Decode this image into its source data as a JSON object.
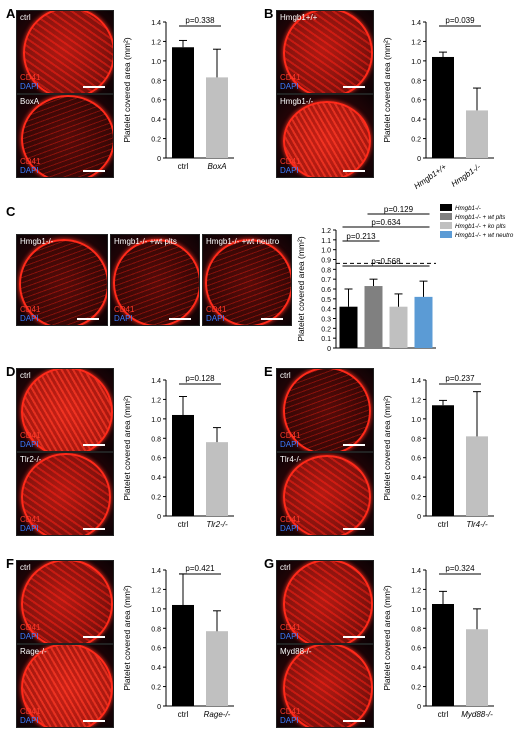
{
  "panels": {
    "A": {
      "letter": "A",
      "images": [
        {
          "label": "ctrl"
        },
        {
          "label": "BoxA"
        }
      ]
    },
    "B": {
      "letter": "B",
      "images": [
        {
          "label": "Hmgb1+/+"
        },
        {
          "label": "Hmgb1-/-"
        }
      ]
    },
    "C": {
      "letter": "C",
      "images": [
        {
          "label": "Hmgb1-/-"
        },
        {
          "label": "Hmgb1-/- +wt plts"
        },
        {
          "label": "Hmgb1-/- +wt neutro"
        }
      ]
    },
    "D": {
      "letter": "D",
      "images": [
        {
          "label": "ctrl"
        },
        {
          "label": "Tlr2-/-"
        }
      ]
    },
    "E": {
      "letter": "E",
      "images": [
        {
          "label": "ctrl"
        },
        {
          "label": "Tlr4-/-"
        }
      ]
    },
    "F": {
      "letter": "F",
      "images": [
        {
          "label": "ctrl"
        },
        {
          "label": "Rage-/-"
        }
      ]
    },
    "G": {
      "letter": "G",
      "images": [
        {
          "label": "ctrl"
        },
        {
          "label": "Myd88-/-"
        }
      ]
    }
  },
  "stain_labels": {
    "cd41": "CD41",
    "dapi": "DAPI"
  },
  "colors": {
    "black_bar": "#000000",
    "gray_bar": "#c0c0c0",
    "dark_gray_bar": "#808080",
    "blue_bar": "#5b9bd5",
    "cd41": "#ff3a2a",
    "dapi": "#3a7bff"
  },
  "chart_data": [
    {
      "panel": "A",
      "type": "bar",
      "categories": [
        "ctrl",
        "BoxA"
      ],
      "values": [
        1.14,
        0.83
      ],
      "errors": [
        0.07,
        0.29
      ],
      "colors": [
        "#000000",
        "#c0c0c0"
      ],
      "ylabel": "Platelet covered area (mm²)",
      "ylim": [
        0,
        1.4
      ],
      "yticks": [
        "0",
        "0.2",
        "0.4",
        "0.6",
        "0.8",
        "1.0",
        "1.2",
        "1.4"
      ],
      "annotations": [
        {
          "text": "p=0.338",
          "from": 0,
          "to": 1
        }
      ]
    },
    {
      "panel": "B",
      "type": "bar",
      "categories": [
        "Hmgb1+/+",
        "Hmgb1-/-"
      ],
      "values": [
        1.04,
        0.49
      ],
      "errors": [
        0.05,
        0.23
      ],
      "colors": [
        "#000000",
        "#c0c0c0"
      ],
      "ylabel": "Platelet covered area (mm²)",
      "ylim": [
        0,
        1.4
      ],
      "yticks": [
        "0",
        "0.2",
        "0.4",
        "0.6",
        "0.8",
        "1.0",
        "1.2",
        "1.4"
      ],
      "annotations": [
        {
          "text": "p=0.039",
          "from": 0,
          "to": 1
        }
      ]
    },
    {
      "panel": "C",
      "type": "bar",
      "categories": [
        "Hmgb1-/-",
        "Hmgb1-/- + wt plts",
        "Hmgb1-/- + ko plts",
        "Hmgb1-/- + wt neutro"
      ],
      "values": [
        0.42,
        0.63,
        0.42,
        0.52
      ],
      "errors": [
        0.18,
        0.07,
        0.13,
        0.16
      ],
      "colors": [
        "#000000",
        "#808080",
        "#c0c0c0",
        "#5b9bd5"
      ],
      "ylabel": "Platelet covered area (mm²)",
      "ylim": [
        0,
        1.2
      ],
      "yticks": [
        "0",
        "0.1",
        "0.2",
        "0.3",
        "0.4",
        "0.5",
        "0.6",
        "0.7",
        "0.8",
        "0.9",
        "1.0",
        "1.1",
        "1.2"
      ],
      "reference_line": 0.86,
      "legend": [
        "Hmgb1-/-",
        "Hmgb1-/- + wt plts",
        "Hmgb1-/- + ko plts",
        "Hmgb1-/- + wt neutro"
      ],
      "annotations": [
        {
          "text": "p=0.129",
          "from": 1,
          "to": 3
        },
        {
          "text": "p=0.634",
          "from": 0,
          "to": 3
        },
        {
          "text": "p=0.213",
          "from": 0,
          "to": 1
        },
        {
          "text": "p=0.568",
          "from": 0,
          "to": 3
        }
      ]
    },
    {
      "panel": "D",
      "type": "bar",
      "categories": [
        "ctrl",
        "Tlr2-/-"
      ],
      "values": [
        1.04,
        0.76
      ],
      "errors": [
        0.19,
        0.15
      ],
      "colors": [
        "#000000",
        "#c0c0c0"
      ],
      "ylabel": "Platelet covered area (mm²)",
      "ylim": [
        0,
        1.4
      ],
      "yticks": [
        "0",
        "0.2",
        "0.4",
        "0.6",
        "0.8",
        "1.0",
        "1.2",
        "1.4"
      ],
      "annotations": [
        {
          "text": "p=0.128",
          "from": 0,
          "to": 1
        }
      ]
    },
    {
      "panel": "E",
      "type": "bar",
      "categories": [
        "ctrl",
        "Tlr4-/-"
      ],
      "values": [
        1.14,
        0.82
      ],
      "errors": [
        0.05,
        0.46
      ],
      "colors": [
        "#000000",
        "#c0c0c0"
      ],
      "ylabel": "Platelet covered area (mm²)",
      "ylim": [
        0,
        1.4
      ],
      "yticks": [
        "0",
        "0.2",
        "0.4",
        "0.6",
        "0.8",
        "1.0",
        "1.2",
        "1.4"
      ],
      "annotations": [
        {
          "text": "p=0.237",
          "from": 0,
          "to": 1
        }
      ]
    },
    {
      "panel": "F",
      "type": "bar",
      "categories": [
        "ctrl",
        "Rage-/-"
      ],
      "values": [
        1.04,
        0.77
      ],
      "errors": [
        0.32,
        0.21
      ],
      "colors": [
        "#000000",
        "#c0c0c0"
      ],
      "ylabel": "Platelet covered area (mm²)",
      "ylim": [
        0,
        1.4
      ],
      "yticks": [
        "0",
        "0.2",
        "0.4",
        "0.6",
        "0.8",
        "1.0",
        "1.2",
        "1.4"
      ],
      "annotations": [
        {
          "text": "p=0.421",
          "from": 0,
          "to": 1
        }
      ]
    },
    {
      "panel": "G",
      "type": "bar",
      "categories": [
        "ctrl",
        "Myd88-/-"
      ],
      "values": [
        1.05,
        0.79
      ],
      "errors": [
        0.13,
        0.21
      ],
      "colors": [
        "#000000",
        "#c0c0c0"
      ],
      "ylabel": "Platelet covered area (mm²)",
      "ylim": [
        0,
        1.4
      ],
      "yticks": [
        "0",
        "0.2",
        "0.4",
        "0.6",
        "0.8",
        "1.0",
        "1.2",
        "1.4"
      ],
      "annotations": [
        {
          "text": "p=0.324",
          "from": 0,
          "to": 1
        }
      ]
    }
  ]
}
